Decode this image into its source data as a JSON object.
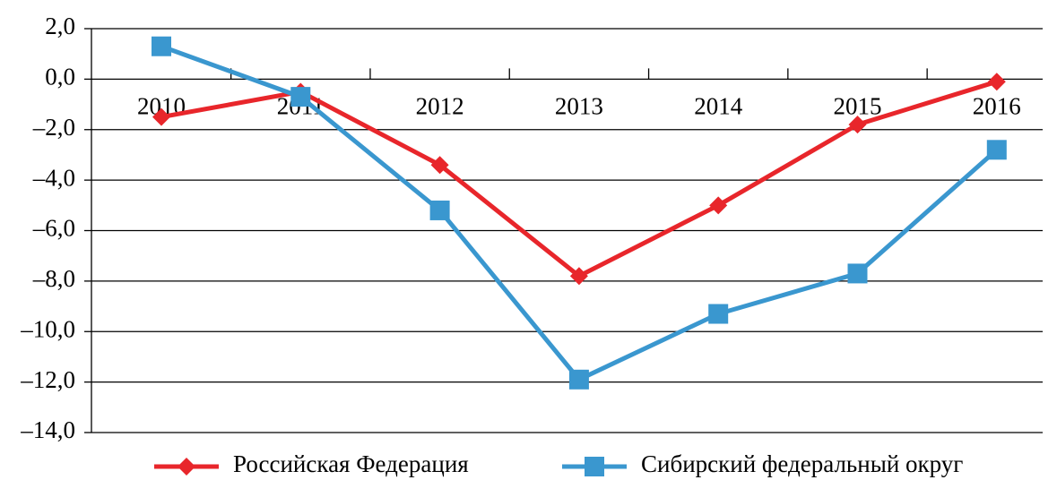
{
  "chart_data": {
    "type": "line",
    "categories": [
      "2010",
      "2011",
      "2012",
      "2013",
      "2014",
      "2015",
      "2016"
    ],
    "series": [
      {
        "name": "Российская Федерация",
        "color": "#e8262b",
        "marker": "diamond",
        "values": [
          -1.5,
          -0.5,
          -3.4,
          -7.8,
          -5.0,
          -1.8,
          -0.1
        ]
      },
      {
        "name": "Сибирский федеральный округ",
        "color": "#3a97cf",
        "marker": "square",
        "values": [
          1.3,
          -0.7,
          -5.2,
          -11.9,
          -9.3,
          -7.7,
          -2.8
        ]
      }
    ],
    "ylim": [
      -14,
      2
    ],
    "yticks": [
      {
        "value": -14,
        "label": "–14,0"
      },
      {
        "value": -12,
        "label": "–12,0"
      },
      {
        "value": -10,
        "label": "–10,0"
      },
      {
        "value": -8,
        "label": "–8,0"
      },
      {
        "value": -6,
        "label": "–6,0"
      },
      {
        "value": -4,
        "label": "–4,0"
      },
      {
        "value": -2,
        "label": "–2,0"
      },
      {
        "value": 0,
        "label": "0,0"
      },
      {
        "value": 2,
        "label": "2,0"
      }
    ],
    "grid": true,
    "legend": "bottom"
  }
}
